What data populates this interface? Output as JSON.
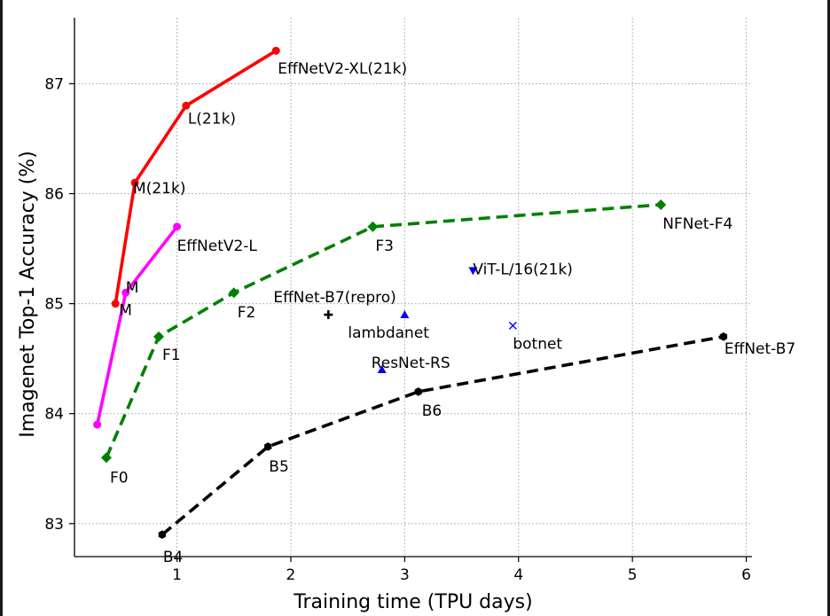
{
  "chart_data": {
    "type": "line",
    "xlabel": "Training time (TPU days)",
    "ylabel": "Imagenet Top-1 Accuracy (%)",
    "xlim": [
      0.1,
      6.05
    ],
    "ylim": [
      82.7,
      87.6
    ],
    "xticks": [
      1,
      2,
      3,
      4,
      5,
      6
    ],
    "yticks": [
      83,
      84,
      85,
      86,
      87
    ],
    "grid": true,
    "series": [
      {
        "name": "EffNetV2-XL(21k)",
        "color": "#ff0000",
        "style": "solid",
        "marker": "circle",
        "x": [
          0.46,
          0.63,
          1.08,
          1.87
        ],
        "y": [
          85.0,
          86.1,
          86.8,
          87.3
        ],
        "labels": [
          "M",
          "M(21k)",
          "L(21k)",
          "EffNetV2-XL(21k)"
        ]
      },
      {
        "name": "EffNetV2-L",
        "color": "#ff00ff",
        "style": "solid",
        "marker": "circle",
        "x": [
          0.3,
          0.55,
          1.0
        ],
        "y": [
          83.9,
          85.1,
          85.7
        ],
        "labels": [
          "",
          "M",
          "EffNetV2-L"
        ]
      },
      {
        "name": "NFNet-F4",
        "color": "#008000",
        "style": "dashed",
        "marker": "diamond",
        "x": [
          0.38,
          0.84,
          1.5,
          2.72,
          5.25
        ],
        "y": [
          83.6,
          84.7,
          85.1,
          85.7,
          85.9
        ],
        "labels": [
          "F0",
          "F1",
          "F2",
          "F3",
          "NFNet-F4"
        ]
      },
      {
        "name": "EffNet-B7",
        "color": "#000000",
        "style": "dashed",
        "marker": "hexagon",
        "x": [
          0.87,
          1.8,
          3.12,
          5.8
        ],
        "y": [
          82.9,
          83.7,
          84.2,
          84.7
        ],
        "labels": [
          "B4",
          "B5",
          "B6",
          "EffNet-B7"
        ]
      }
    ],
    "points": [
      {
        "label": "EffNet-B7(repro)",
        "x": 2.33,
        "y": 84.9,
        "marker": "plus",
        "color": "#000000"
      },
      {
        "label": "lambdanet",
        "x": 3.0,
        "y": 84.9,
        "marker": "triangle-up",
        "color": "#0000ff"
      },
      {
        "label": "ViT-L/16(21k)",
        "x": 3.6,
        "y": 85.3,
        "marker": "triangle-down",
        "color": "#0000ff"
      },
      {
        "label": "botnet",
        "x": 3.95,
        "y": 84.8,
        "marker": "x",
        "color": "#0000ff"
      },
      {
        "label": "ResNet-RS",
        "x": 2.8,
        "y": 84.4,
        "marker": "triangle-up",
        "color": "#0000ff"
      }
    ]
  }
}
